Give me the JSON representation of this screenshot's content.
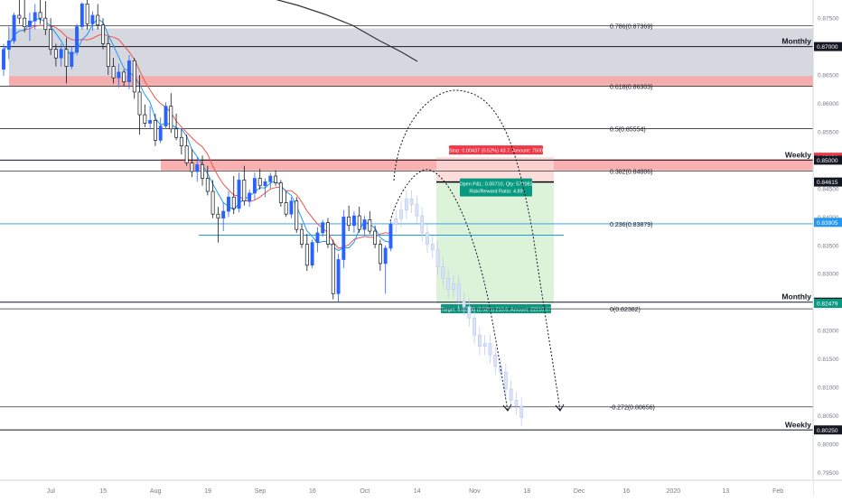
{
  "chart_data": {
    "type": "candlestick",
    "y_axis": {
      "min": 0.7938,
      "max": 0.8782,
      "ticks": [
        0.875,
        0.87,
        0.865,
        0.86,
        0.855,
        0.85,
        0.845,
        0.84,
        0.835,
        0.83,
        0.825,
        0.82,
        0.815,
        0.81,
        0.805,
        0.8,
        0.795
      ]
    },
    "x_axis": {
      "labels": [
        "Jul",
        "15",
        "Aug",
        "19",
        "Sep",
        "16",
        "Oct",
        "14",
        "Nov",
        "18",
        "Dec",
        "16",
        "2020",
        "13",
        "Feb"
      ],
      "bar_index": [
        3,
        13,
        23,
        33,
        43,
        53,
        63,
        73,
        84,
        94,
        104,
        113,
        122,
        132,
        142
      ]
    },
    "candles": [
      [
        0.866,
        0.8705,
        0.8648,
        0.8695
      ],
      [
        0.8695,
        0.8735,
        0.8678,
        0.871
      ],
      [
        0.871,
        0.876,
        0.8705,
        0.8755
      ],
      [
        0.8755,
        0.8785,
        0.874,
        0.875
      ],
      [
        0.875,
        0.8782,
        0.8725,
        0.8735
      ],
      [
        0.8735,
        0.876,
        0.871,
        0.8745
      ],
      [
        0.8745,
        0.8775,
        0.873,
        0.876
      ],
      [
        0.876,
        0.8782,
        0.874,
        0.875
      ],
      [
        0.875,
        0.878,
        0.872,
        0.873
      ],
      [
        0.873,
        0.875,
        0.8685,
        0.8695
      ],
      [
        0.8695,
        0.8705,
        0.8665,
        0.868
      ],
      [
        0.868,
        0.8705,
        0.8665,
        0.8695
      ],
      [
        0.8695,
        0.8715,
        0.8635,
        0.8665
      ],
      [
        0.8665,
        0.87,
        0.866,
        0.869
      ],
      [
        0.869,
        0.874,
        0.8685,
        0.8735
      ],
      [
        0.8735,
        0.8778,
        0.873,
        0.8775
      ],
      [
        0.8775,
        0.8782,
        0.873,
        0.874
      ],
      [
        0.874,
        0.8762,
        0.8728,
        0.8755
      ],
      [
        0.8755,
        0.8775,
        0.873,
        0.8738
      ],
      [
        0.8738,
        0.875,
        0.8695,
        0.8705
      ],
      [
        0.8705,
        0.8718,
        0.865,
        0.8665
      ],
      [
        0.8665,
        0.868,
        0.8635,
        0.8645
      ],
      [
        0.8645,
        0.867,
        0.8628,
        0.8655
      ],
      [
        0.8655,
        0.866,
        0.863,
        0.8638
      ],
      [
        0.8638,
        0.8685,
        0.8625,
        0.8675
      ],
      [
        0.8675,
        0.868,
        0.8608,
        0.862
      ],
      [
        0.862,
        0.865,
        0.8545,
        0.858
      ],
      [
        0.858,
        0.8598,
        0.8558,
        0.8565
      ],
      [
        0.8565,
        0.8595,
        0.8555,
        0.857
      ],
      [
        0.857,
        0.8582,
        0.8525,
        0.8535
      ],
      [
        0.8535,
        0.8575,
        0.853,
        0.856
      ],
      [
        0.856,
        0.8602,
        0.8555,
        0.8595
      ],
      [
        0.8595,
        0.8618,
        0.8548,
        0.8555
      ],
      [
        0.8555,
        0.8582,
        0.8535,
        0.854
      ],
      [
        0.854,
        0.8555,
        0.851,
        0.8525
      ],
      [
        0.8525,
        0.8545,
        0.849,
        0.8495
      ],
      [
        0.8495,
        0.852,
        0.847,
        0.848
      ],
      [
        0.848,
        0.8505,
        0.8462,
        0.8492
      ],
      [
        0.8492,
        0.8508,
        0.8455,
        0.8468
      ],
      [
        0.8468,
        0.849,
        0.8438,
        0.8445
      ],
      [
        0.8445,
        0.8465,
        0.8398,
        0.8405
      ],
      [
        0.8405,
        0.8418,
        0.8355,
        0.8398
      ],
      [
        0.8398,
        0.8425,
        0.8375,
        0.841
      ],
      [
        0.841,
        0.8445,
        0.84,
        0.8435
      ],
      [
        0.8435,
        0.8472,
        0.8405,
        0.8415
      ],
      [
        0.8415,
        0.8478,
        0.8408,
        0.8465
      ],
      [
        0.8465,
        0.849,
        0.842,
        0.8428
      ],
      [
        0.8428,
        0.8448,
        0.8418,
        0.8442
      ],
      [
        0.8442,
        0.8478,
        0.843,
        0.8468
      ],
      [
        0.8468,
        0.8485,
        0.8448,
        0.8455
      ],
      [
        0.8455,
        0.8468,
        0.8435,
        0.8462
      ],
      [
        0.8462,
        0.8478,
        0.845,
        0.8472
      ],
      [
        0.8472,
        0.8482,
        0.8455,
        0.846
      ],
      [
        0.846,
        0.8465,
        0.8418,
        0.8425
      ],
      [
        0.8425,
        0.8445,
        0.84,
        0.8405
      ],
      [
        0.8405,
        0.8435,
        0.8398,
        0.8428
      ],
      [
        0.8428,
        0.8435,
        0.8372,
        0.8378
      ],
      [
        0.8378,
        0.8388,
        0.8345,
        0.8352
      ],
      [
        0.8352,
        0.837,
        0.8305,
        0.8315
      ],
      [
        0.8315,
        0.836,
        0.831,
        0.8355
      ],
      [
        0.8355,
        0.8382,
        0.8338,
        0.8372
      ],
      [
        0.8372,
        0.8395,
        0.8365,
        0.839
      ],
      [
        0.839,
        0.8398,
        0.8345,
        0.8352
      ],
      [
        0.8352,
        0.836,
        0.8255,
        0.8265
      ],
      [
        0.8265,
        0.8335,
        0.825,
        0.8325
      ],
      [
        0.8325,
        0.8412,
        0.831,
        0.84
      ],
      [
        0.84,
        0.842,
        0.8375,
        0.8385
      ],
      [
        0.8385,
        0.841,
        0.8372,
        0.8402
      ],
      [
        0.8402,
        0.8418,
        0.8372,
        0.8378
      ],
      [
        0.8378,
        0.8402,
        0.8368,
        0.8395
      ],
      [
        0.8395,
        0.841,
        0.837,
        0.8375
      ],
      [
        0.8375,
        0.8385,
        0.8345,
        0.8352
      ],
      [
        0.8352,
        0.836,
        0.8305,
        0.8318
      ],
      [
        0.8318,
        0.835,
        0.8265,
        0.8345
      ],
      [
        0.8345,
        0.8392,
        0.834,
        0.8387
      ]
    ],
    "hidden_after_index": 75,
    "fib_levels": [
      {
        "label": "0.786(0.87369)",
        "value": 0.87369
      },
      {
        "label": "0.618(0.86303)",
        "value": 0.86303
      },
      {
        "label": "0.5(0.85554)",
        "value": 0.85554
      },
      {
        "label": "0.382(0.84806)",
        "value": 0.84806
      },
      {
        "label": "0.236(0.83879)",
        "value": 0.83879
      },
      {
        "label": "0(0.82382)",
        "value": 0.82382
      },
      {
        "label": "-0.272(0.80656)",
        "value": 0.80656
      }
    ],
    "levels": [
      {
        "label": "Monthly",
        "value": 0.87
      },
      {
        "label": "Weekly",
        "value": 0.85
      },
      {
        "label": "Monthly",
        "value": 0.825
      },
      {
        "label": "Weekly",
        "value": 0.8025
      }
    ],
    "zones": [
      {
        "top": 0.8732,
        "bottom": 0.8635,
        "color": "#d1d4dc"
      },
      {
        "top": 0.8648,
        "bottom": 0.863,
        "color": "#f7a9a7"
      },
      {
        "top": 0.8502,
        "bottom": 0.8482,
        "color": "#f7a9a7"
      }
    ],
    "horizontal_ray_value": 0.8368,
    "position": {
      "entry": 0.84615,
      "stop": 0.85052,
      "target": 0.8248,
      "stop_text": "Stop: 0.00437 (0.52%) 43.7, Amount: 7500",
      "pnl_text": "Open P&L: 0.00710, Qty: 572082",
      "rr_text": "Risk/Reward Ratio: 4.89",
      "target_text": "Target: 0.02136 (2.52%) 213.6, Amount: 22210.67"
    },
    "price_tags": [
      {
        "value": 0.87,
        "text": "0.87000",
        "color": "#131722"
      },
      {
        "value": 0.85052,
        "text": "0.85052",
        "color": "#f23645"
      },
      {
        "value": 0.85,
        "text": "0.85000",
        "color": "#131722"
      },
      {
        "value": 0.84615,
        "text": "0.84615",
        "color": "#131722"
      },
      {
        "value": 0.83905,
        "text": "0.83905",
        "color": "#2196f3"
      },
      {
        "value": 0.825,
        "text": "0.82500",
        "color": "#131722"
      },
      {
        "value": 0.82479,
        "text": "0.82479",
        "color": "#089981"
      },
      {
        "value": 0.8025,
        "text": "0.80250",
        "color": "#131722"
      }
    ],
    "colors": {
      "up": "#2962ff",
      "down": "#131722",
      "bg": "#ffffff",
      "ma_red": "#ef5350",
      "ma_blue": "#2196f3",
      "ma_long": "#333333",
      "target_fill": "#d6f0d2",
      "stop_fill": "#fbd7d5"
    }
  }
}
